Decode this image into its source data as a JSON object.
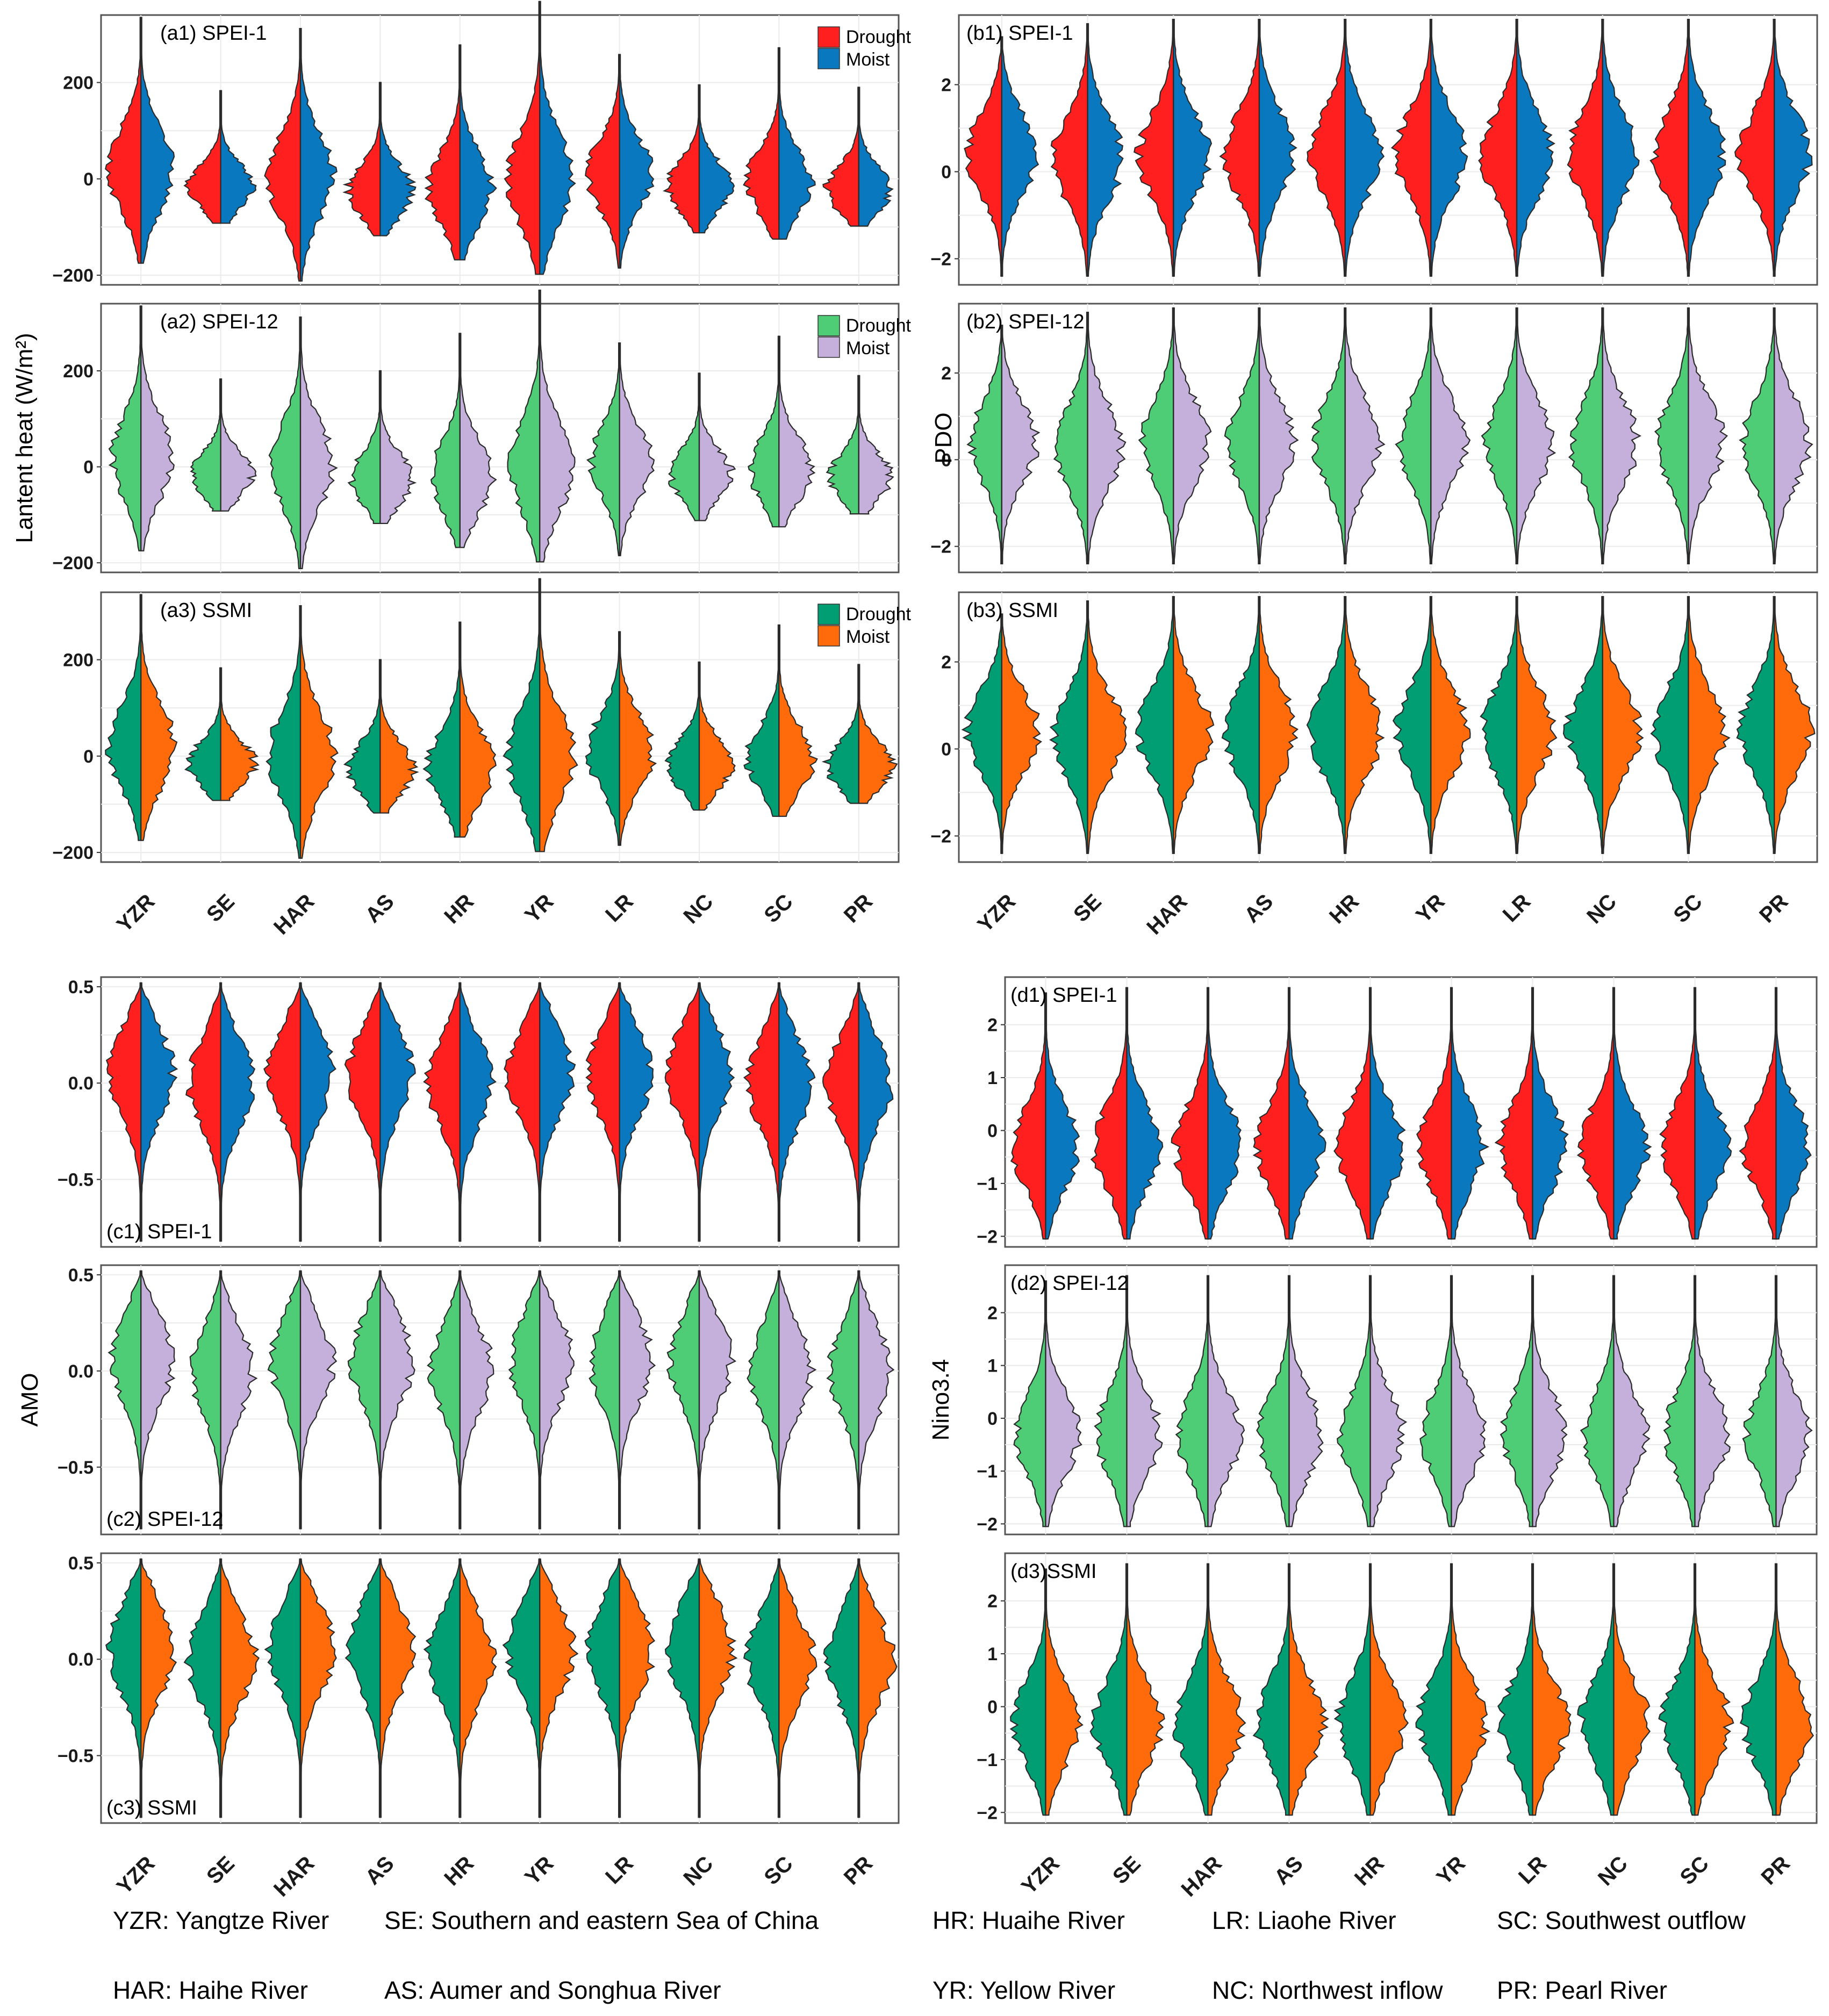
{
  "chart_data": {
    "type": "violin",
    "categories": [
      "YZR",
      "SE",
      "HAR",
      "AS",
      "HR",
      "YR",
      "LR",
      "NC",
      "SC",
      "PR"
    ],
    "color_schemes": {
      "spei1": {
        "drought": "#FF1F1F",
        "moist": "#0A78BE"
      },
      "spei12": {
        "drought": "#4FCC76",
        "moist": "#C4B0DA"
      },
      "ssmi": {
        "drought": "#019E73",
        "moist": "#FF6A0B"
      }
    },
    "legend_labels": {
      "drought": "Drought",
      "moist": "Moist"
    },
    "groups": [
      {
        "id": "a",
        "ylabel": "Lantent heat (W/m²)",
        "ylim": [
          -220,
          340
        ],
        "yticks": [
          200,
          0,
          -200
        ],
        "ytick_labels": [
          "200",
          "0",
          "−200"
        ],
        "panels": [
          {
            "label": "(a1) SPEI-1",
            "scheme": "spei1",
            "legend": true
          },
          {
            "label": "(a2) SPEI-12",
            "scheme": "spei12",
            "legend": true
          },
          {
            "label": "(a3) SSMI",
            "scheme": "ssmi",
            "legend": true
          }
        ],
        "violins": {
          "top": [
            335,
            183,
            312,
            200,
            278,
            368,
            258,
            195,
            272,
            190
          ],
          "bottom": [
            -175,
            -92,
            -212,
            -118,
            -168,
            -198,
            -185,
            -112,
            -125,
            -98
          ],
          "peak": [
            20,
            -15,
            5,
            -25,
            -20,
            0,
            10,
            -15,
            -5,
            -20
          ]
        }
      },
      {
        "id": "b",
        "ylabel": "PDO",
        "ylim": [
          -2.6,
          3.6
        ],
        "yticks": [
          2,
          0,
          -2
        ],
        "ytick_labels": [
          "2",
          "0",
          "−2"
        ],
        "panels": [
          {
            "label": "(b1) SPEI-1",
            "scheme": "spei1",
            "legend": false
          },
          {
            "label": "(b2) SPEI-12",
            "scheme": "spei12",
            "legend": false
          },
          {
            "label": "(b3) SSMI",
            "scheme": "ssmi",
            "legend": false
          }
        ],
        "violins": {
          "top": [
            3.1,
            3.4,
            3.5,
            3.5,
            3.5,
            3.5,
            3.5,
            3.5,
            3.5,
            3.5
          ],
          "bottom": [
            -2.4,
            -2.4,
            -2.4,
            -2.4,
            -2.4,
            -2.4,
            -2.4,
            -2.4,
            -2.4,
            -2.4
          ],
          "peak": [
            0.4,
            0.3,
            0.4,
            0.4,
            0.4,
            0.4,
            0.4,
            0.4,
            0.4,
            0.4
          ]
        }
      },
      {
        "id": "c",
        "ylabel": "AMO",
        "ylim": [
          -0.85,
          0.55
        ],
        "yticks": [
          0.5,
          0.0,
          -0.5
        ],
        "ytick_labels": [
          "0.5",
          "0.0",
          "−0.5"
        ],
        "panels": [
          {
            "label": "(c1) SPEI-1",
            "scheme": "spei1",
            "legend": false
          },
          {
            "label": "(c2) SPEI-12",
            "scheme": "spei12",
            "legend": false
          },
          {
            "label": "(c3) SSMI",
            "scheme": "ssmi",
            "legend": false
          }
        ],
        "violins": {
          "top": [
            0.52,
            0.52,
            0.52,
            0.52,
            0.52,
            0.52,
            0.52,
            0.52,
            0.52,
            0.52
          ],
          "bottom": [
            -0.82,
            -0.82,
            -0.82,
            -0.82,
            -0.82,
            -0.82,
            -0.82,
            -0.82,
            -0.82,
            -0.82
          ],
          "peak": [
            0.05,
            0.0,
            0.05,
            0.05,
            0.0,
            0.05,
            0.05,
            0.05,
            0.0,
            0.0
          ]
        }
      },
      {
        "id": "d",
        "ylabel": "Nino3.4",
        "ylim": [
          -2.2,
          2.9
        ],
        "yticks": [
          2,
          1,
          0,
          -1,
          -2
        ],
        "ytick_labels": [
          "2",
          "1",
          "0",
          "−1",
          "−2"
        ],
        "panels": [
          {
            "label": "(d1) SPEI-1",
            "scheme": "spei1",
            "legend": false
          },
          {
            "label": "(d2) SPEI-12",
            "scheme": "spei12",
            "legend": false
          },
          {
            "label": "(d3)SSMI",
            "scheme": "ssmi",
            "legend": false
          }
        ],
        "violins": {
          "top": [
            2.6,
            2.7,
            2.7,
            2.7,
            2.7,
            2.7,
            2.7,
            2.7,
            2.7,
            2.7
          ],
          "bottom": [
            -2.05,
            -2.05,
            -2.05,
            -2.05,
            -2.05,
            -2.05,
            -2.05,
            -2.05,
            -2.05,
            -2.05
          ],
          "peak": [
            -0.3,
            -0.3,
            -0.3,
            -0.3,
            -0.3,
            -0.3,
            -0.3,
            -0.3,
            -0.3,
            -0.3
          ]
        }
      }
    ]
  },
  "footnotes": {
    "left_row1": [
      "YZR: Yangtze River",
      "SE: Southern and eastern Sea of China"
    ],
    "left_row2": [
      "HAR: Haihe River",
      "AS: Aumer and Songhua River"
    ],
    "right_row1": [
      "HR: Huaihe River",
      "LR: Liaohe River",
      "SC: Southwest outflow"
    ],
    "right_row2": [
      "YR: Yellow River",
      "NC: Northwest inflow",
      "PR: Pearl River"
    ]
  }
}
